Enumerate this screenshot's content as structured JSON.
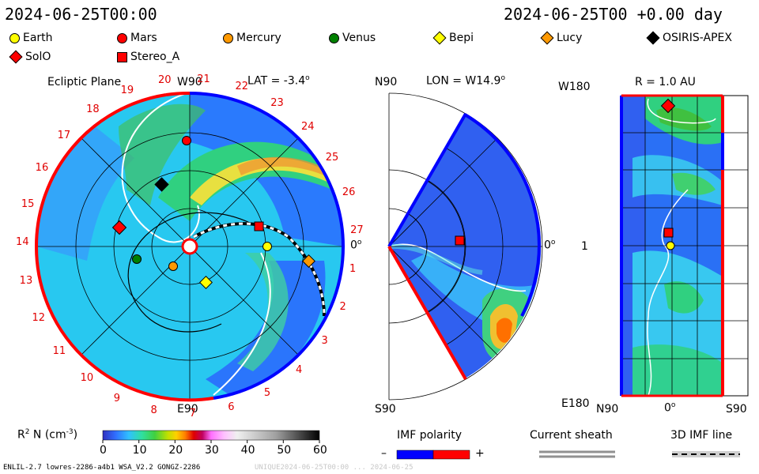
{
  "header": {
    "time_left": "2024-06-25T00:00",
    "time_right": "2024-06-25T00 +0.00 day"
  },
  "legend": [
    {
      "name": "Earth",
      "color": "#ffff00",
      "shape": "circle"
    },
    {
      "name": "Mars",
      "color": "#ff0000",
      "shape": "circle"
    },
    {
      "name": "Mercury",
      "color": "#ff9900",
      "shape": "circle"
    },
    {
      "name": "Venus",
      "color": "#008000",
      "shape": "circle"
    },
    {
      "name": "Bepi",
      "color": "#ffff00",
      "shape": "diamond"
    },
    {
      "name": "Lucy",
      "color": "#ff9900",
      "shape": "diamond"
    },
    {
      "name": "OSIRIS-APEX",
      "color": "#000000",
      "shape": "diamond"
    },
    {
      "name": "SolO",
      "color": "#ff0000",
      "shape": "diamond"
    },
    {
      "name": "Stereo_A",
      "color": "#ff0000",
      "shape": "square"
    }
  ],
  "panels": {
    "ecliptic": {
      "title": "Ecliptic Plane",
      "top": "W90",
      "bottom": "E90",
      "right": "0",
      "lat": "LAT = -3.4",
      "deg": "o",
      "numbers": [
        "19",
        "20",
        "21",
        "22",
        "23",
        "24",
        "25",
        "26",
        "27",
        "1",
        "2",
        "3",
        "4",
        "5",
        "6",
        "7",
        "8",
        "9",
        "10",
        "11",
        "12",
        "13",
        "14",
        "15",
        "16",
        "17",
        "18"
      ]
    },
    "meridional": {
      "top": "N90",
      "bottom": "S90",
      "right": "0",
      "lon": "LON = W14.9",
      "deg": "o"
    },
    "radial": {
      "title": "R = 1.0 AU",
      "top": "W180",
      "bottom": "E180",
      "mid": "1",
      "x_left": "N90",
      "x_mid": "0",
      "x_right": "S90",
      "deg": "o"
    }
  },
  "colorbar": {
    "label": "R",
    "label_sup": "2",
    "label_mid": " N (cm",
    "label_sup2": "-3",
    "label_end": ")",
    "ticks": [
      "0",
      "10",
      "20",
      "30",
      "40",
      "50",
      "60"
    ]
  },
  "imf": {
    "title": "IMF polarity",
    "minus": "–",
    "plus": "+",
    "neg_color": "#0000ff",
    "pos_color": "#ff0000"
  },
  "sheath": {
    "title": "Current sheath"
  },
  "imf3d": {
    "title": "3D IMF line"
  },
  "footer": {
    "left": "ENLIL-2.7 lowres-2286-a4b1 WSA_V2.2 GONGZ-2286",
    "right": "UNIQUE2024-06-25T00:00 ... 2024-06-25"
  },
  "chart_data": {
    "type": "heatmap",
    "title": "Ecliptic Plane",
    "colorbar_range": [
      0,
      60
    ],
    "colorbar_ticks": [
      0,
      10,
      20,
      30,
      40,
      50,
      60
    ],
    "latitude": "LAT = -3.4",
    "longitude": "LON = W14.9",
    "radial_distance": "R = 1.0 AU"
  }
}
